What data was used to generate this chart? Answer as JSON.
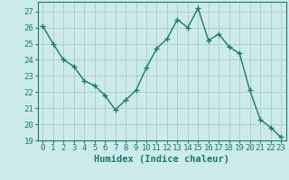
{
  "x": [
    0,
    1,
    2,
    3,
    4,
    5,
    6,
    7,
    8,
    9,
    10,
    11,
    12,
    13,
    14,
    15,
    16,
    17,
    18,
    19,
    20,
    21,
    22,
    23
  ],
  "y": [
    26.1,
    25.0,
    24.0,
    23.6,
    22.7,
    22.4,
    21.8,
    20.9,
    21.5,
    22.1,
    23.5,
    24.7,
    25.3,
    26.5,
    26.0,
    27.2,
    25.2,
    25.6,
    24.8,
    24.4,
    22.1,
    20.3,
    19.8,
    19.2
  ],
  "line_color": "#1a7a6e",
  "marker": "+",
  "bg_color": "#cceaea",
  "grid_color": "#aacccc",
  "xlabel": "Humidex (Indice chaleur)",
  "ylabel": "",
  "xlim": [
    -0.5,
    23.5
  ],
  "ylim": [
    19,
    27.6
  ],
  "yticks": [
    19,
    20,
    21,
    22,
    23,
    24,
    25,
    26,
    27
  ],
  "xticks": [
    0,
    1,
    2,
    3,
    4,
    5,
    6,
    7,
    8,
    9,
    10,
    11,
    12,
    13,
    14,
    15,
    16,
    17,
    18,
    19,
    20,
    21,
    22,
    23
  ],
  "tick_fontsize": 6.5,
  "xlabel_fontsize": 7.5,
  "linewidth": 1.0,
  "marker_size": 4,
  "marker_linewidth": 1.0
}
